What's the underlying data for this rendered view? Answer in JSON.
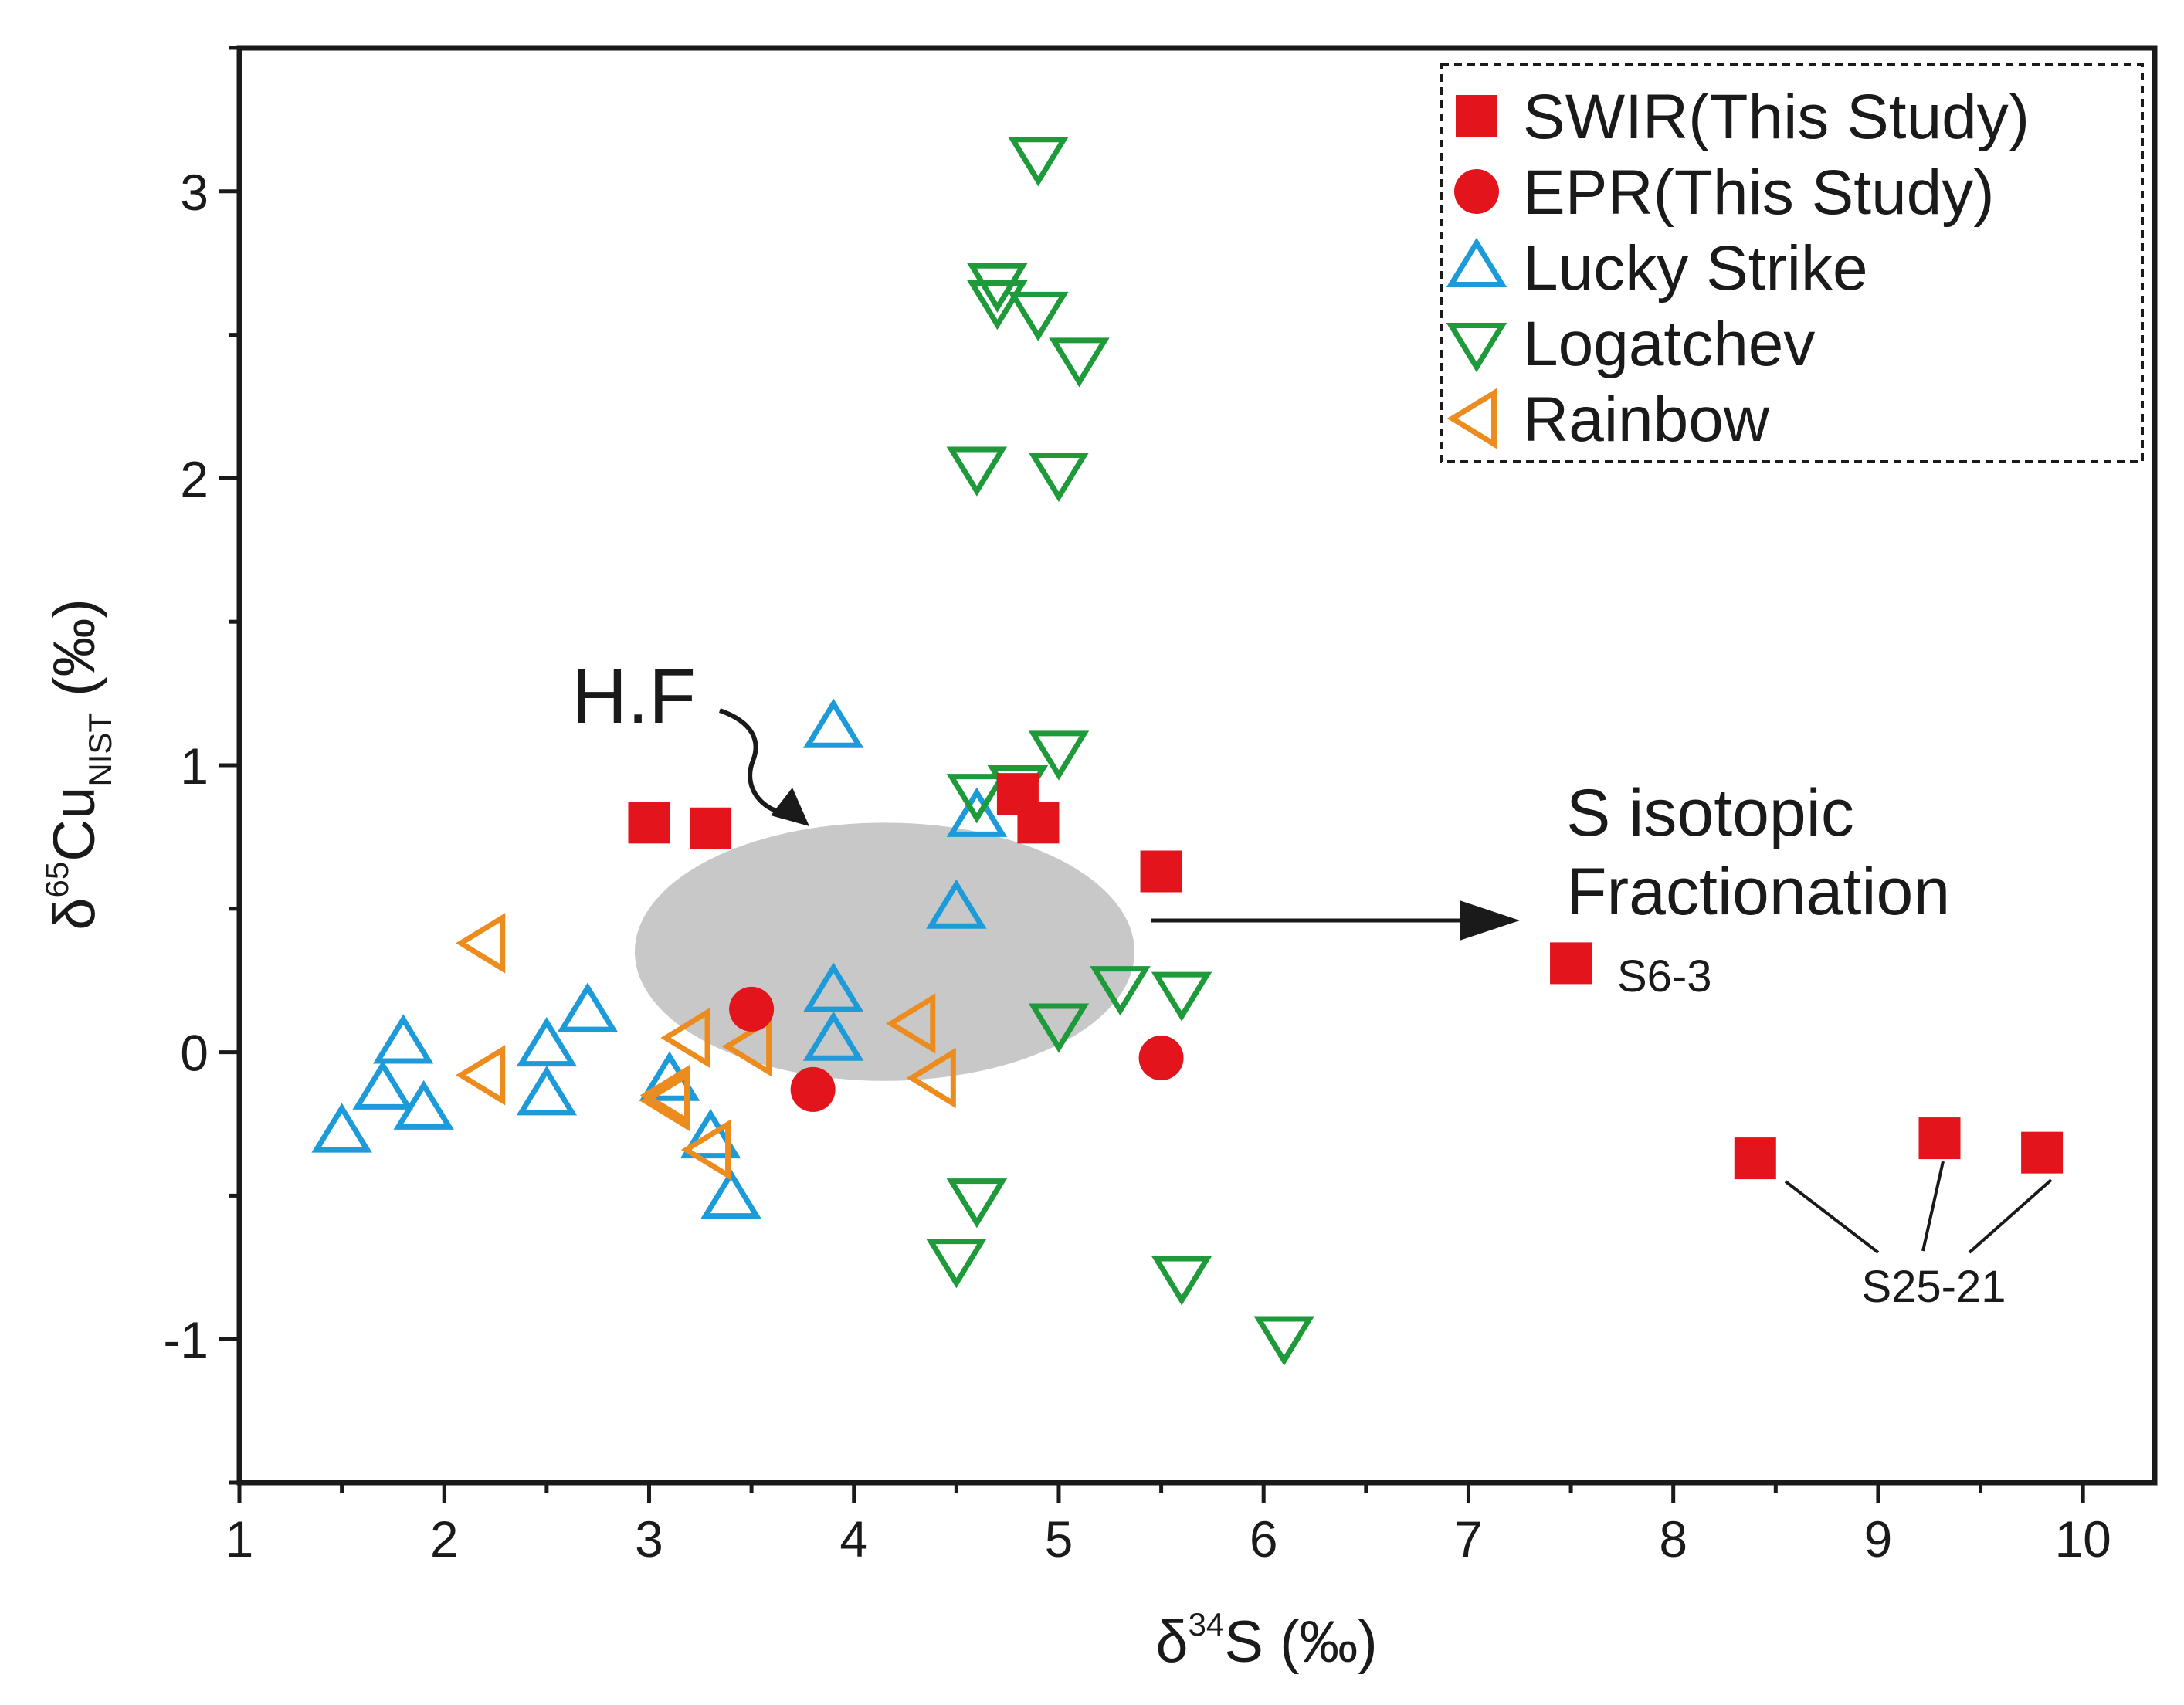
{
  "chart_data": {
    "type": "scatter",
    "xlabel": {
      "main": "δ",
      "sup": "34",
      "rest": "S (‰)"
    },
    "ylabel": {
      "main": "δ",
      "sup": "65",
      "mid": "Cu",
      "sub": "NIST",
      "rest": " (‰)"
    },
    "xlim": [
      1,
      10.35
    ],
    "ylim": [
      -1.5,
      3.5
    ],
    "xticks": [
      1,
      2,
      3,
      4,
      5,
      6,
      7,
      8,
      9,
      10
    ],
    "yticks": [
      -1,
      0,
      1,
      2,
      3
    ],
    "legend_position": "top-right",
    "series": [
      {
        "name": "SWIR(This Study)",
        "marker": "square",
        "filled": true,
        "color": "#e3141b",
        "points": [
          [
            3.0,
            0.8
          ],
          [
            3.3,
            0.78
          ],
          [
            4.8,
            0.9
          ],
          [
            4.9,
            0.8
          ],
          [
            5.5,
            0.63
          ],
          [
            7.5,
            0.31
          ],
          [
            8.4,
            -0.37
          ],
          [
            9.3,
            -0.3
          ],
          [
            9.8,
            -0.35
          ]
        ]
      },
      {
        "name": "EPR(This Study)",
        "marker": "circle",
        "filled": true,
        "color": "#e3141b",
        "points": [
          [
            3.5,
            0.15
          ],
          [
            3.8,
            -0.13
          ],
          [
            5.5,
            -0.02
          ]
        ]
      },
      {
        "name": "Lucky Strike",
        "marker": "triangle-up",
        "filled": false,
        "color": "#1d9bd8",
        "points": [
          [
            1.5,
            -0.28
          ],
          [
            1.7,
            -0.13
          ],
          [
            1.8,
            0.03
          ],
          [
            1.9,
            -0.2
          ],
          [
            2.5,
            0.02
          ],
          [
            2.5,
            -0.15
          ],
          [
            2.7,
            0.14
          ],
          [
            3.1,
            -0.1
          ],
          [
            3.3,
            -0.3
          ],
          [
            3.4,
            -0.51
          ],
          [
            3.9,
            1.13
          ],
          [
            3.9,
            0.21
          ],
          [
            3.9,
            0.04
          ],
          [
            4.5,
            0.5
          ],
          [
            4.6,
            0.82
          ]
        ]
      },
      {
        "name": "Logatchev",
        "marker": "triangle-down",
        "filled": false,
        "color": "#1f9a3b",
        "points": [
          [
            4.9,
            3.12
          ],
          [
            4.7,
            2.68
          ],
          [
            4.7,
            2.62
          ],
          [
            4.9,
            2.58
          ],
          [
            5.1,
            2.42
          ],
          [
            4.6,
            2.04
          ],
          [
            5.0,
            2.02
          ],
          [
            5.0,
            1.05
          ],
          [
            4.6,
            0.9
          ],
          [
            4.8,
            0.93
          ],
          [
            5.3,
            0.23
          ],
          [
            5.6,
            0.21
          ],
          [
            5.0,
            0.1
          ],
          [
            4.6,
            -0.51
          ],
          [
            4.5,
            -0.72
          ],
          [
            5.6,
            -0.78
          ],
          [
            6.1,
            -0.99
          ]
        ]
      },
      {
        "name": "Rainbow",
        "marker": "triangle-left",
        "filled": false,
        "color": "#ec8c1f",
        "points": [
          [
            2.2,
            0.38
          ],
          [
            2.2,
            -0.08
          ],
          [
            3.1,
            -0.15
          ],
          [
            3.1,
            -0.17
          ],
          [
            3.2,
            0.05
          ],
          [
            3.3,
            -0.34
          ],
          [
            3.5,
            0.02
          ],
          [
            4.3,
            0.1
          ],
          [
            4.4,
            -0.09
          ]
        ]
      }
    ],
    "ellipse": {
      "label": "H.F",
      "center": [
        4.15,
        0.35
      ],
      "rx": 1.22,
      "ry": 0.45,
      "color": "#c8c8c8"
    },
    "annotations": {
      "fractionation_line1": "S isotopic",
      "fractionation_line2": "Fractionation",
      "label_s6": "S6-3",
      "label_s25": "S25-21"
    }
  }
}
